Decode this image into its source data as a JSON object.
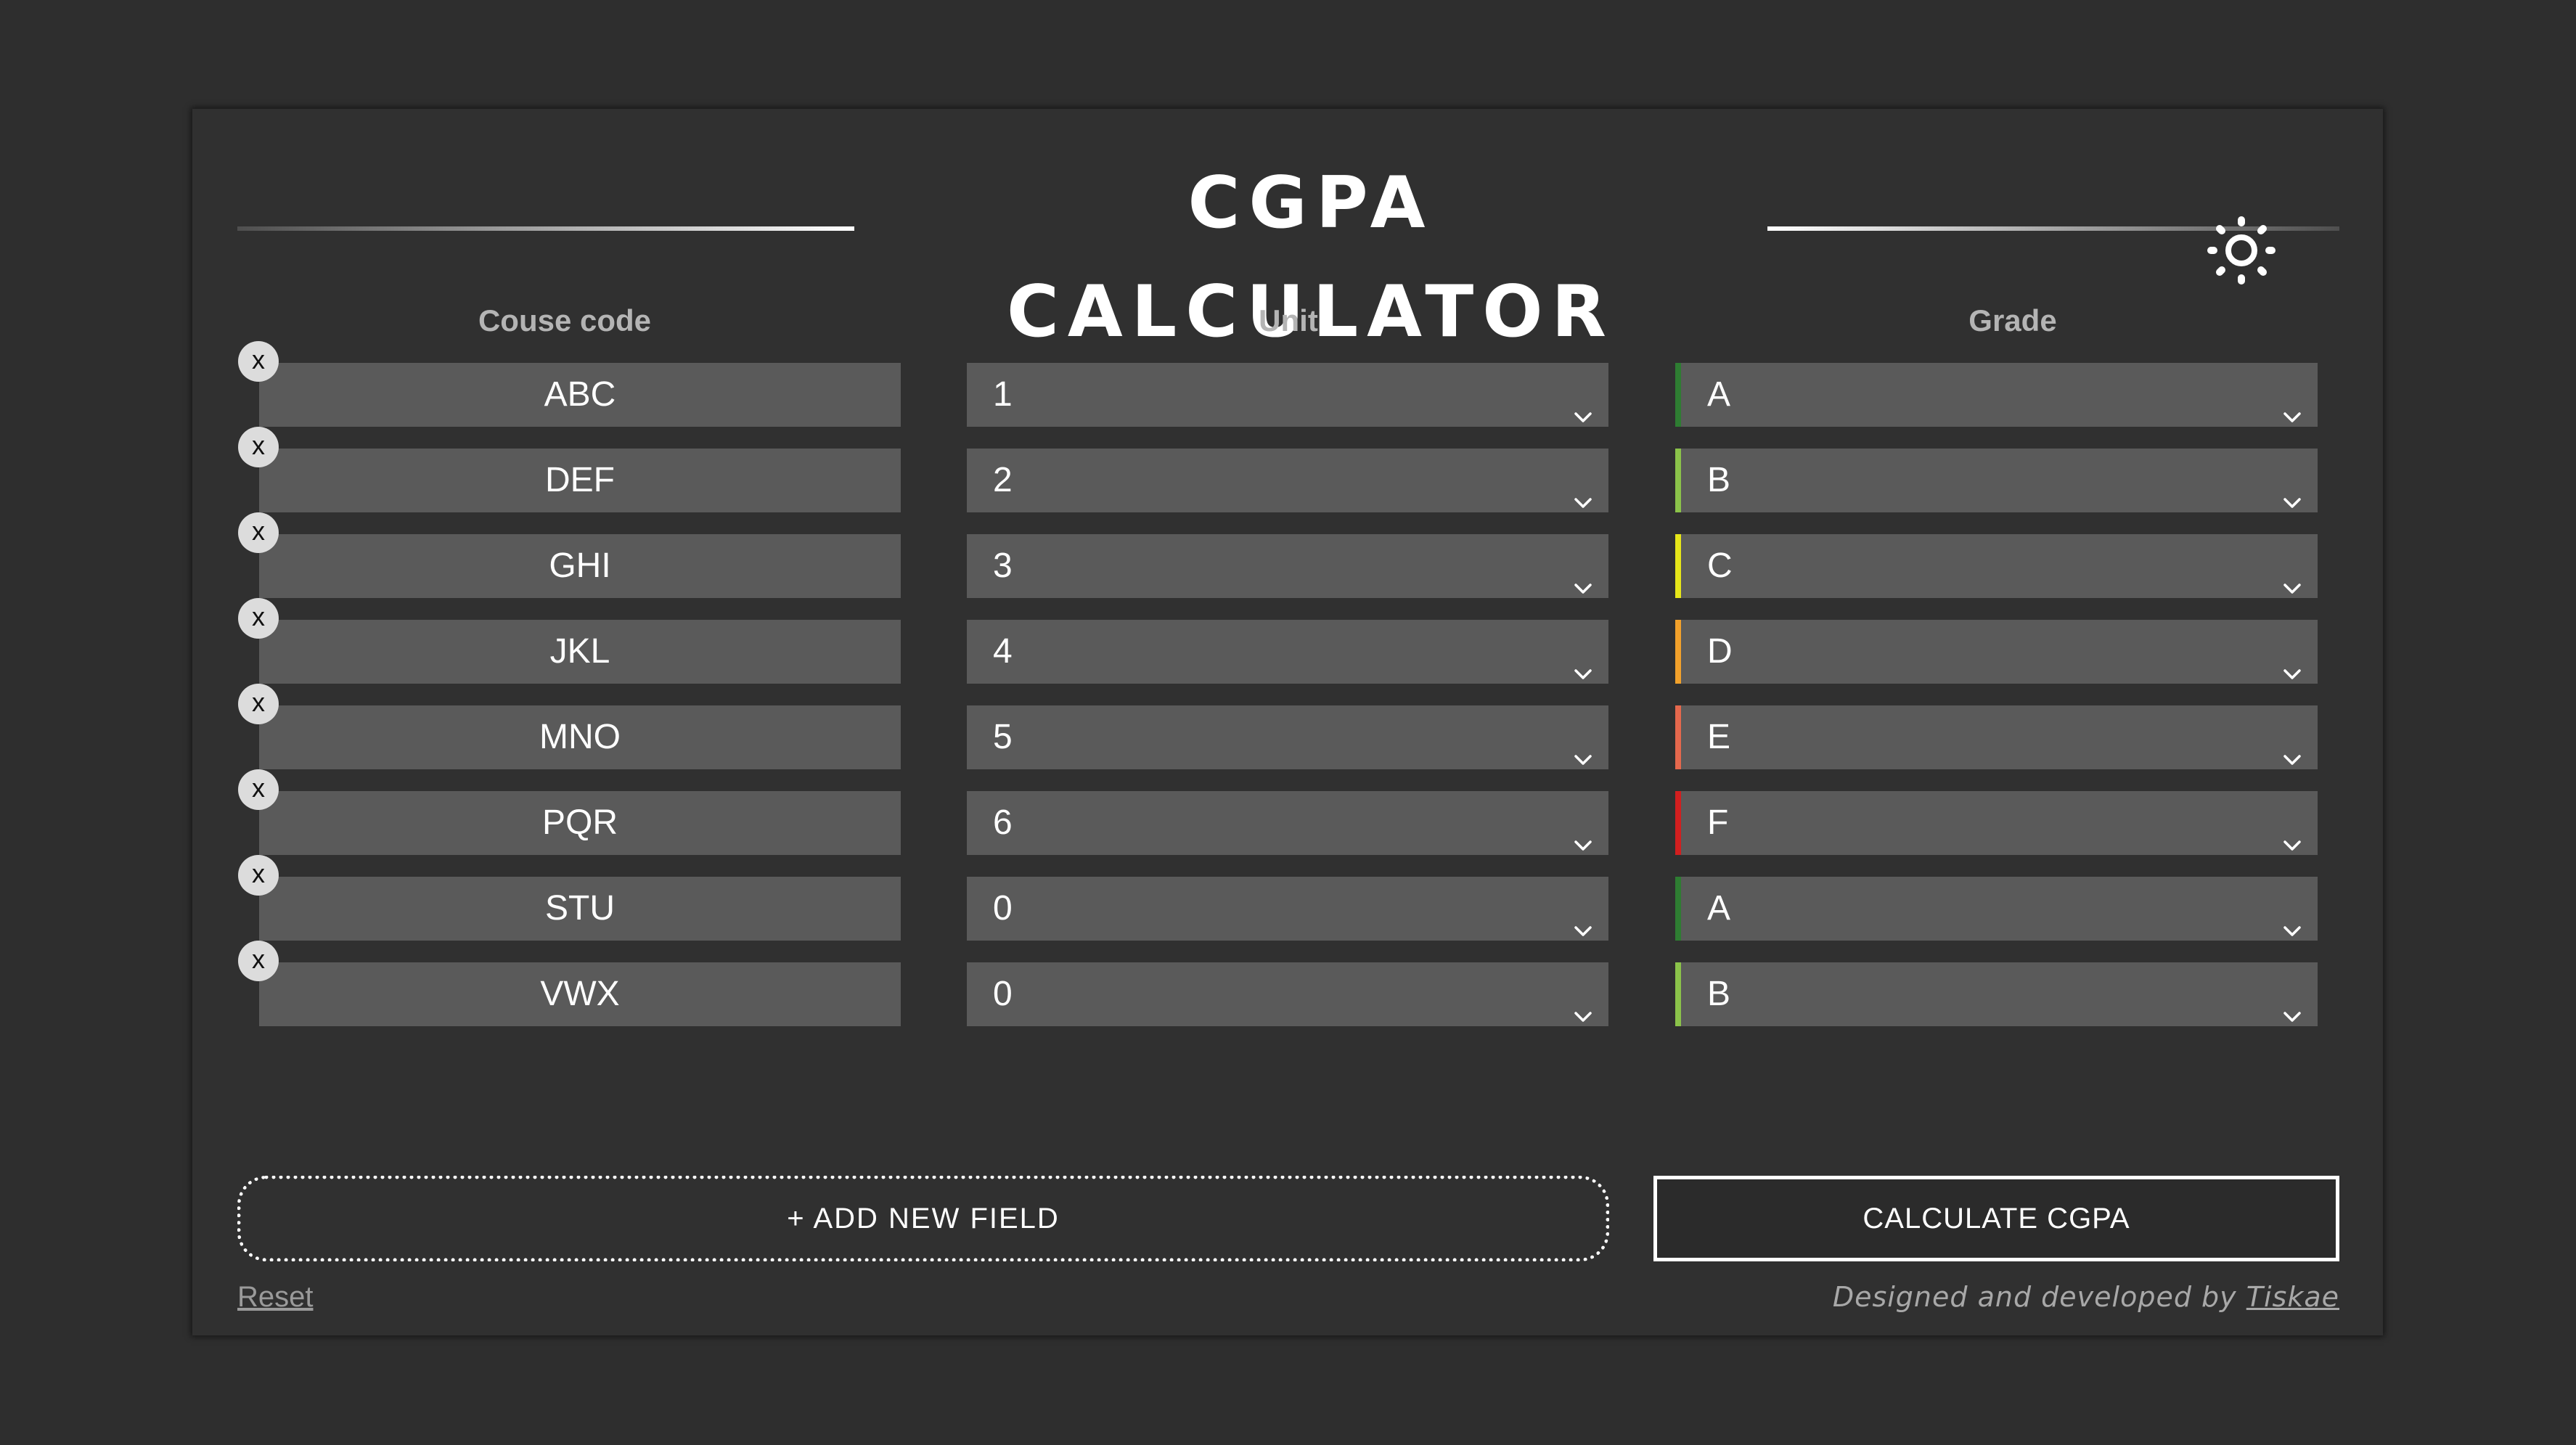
{
  "app": {
    "title": "CGPA CALCULATOR",
    "theme_toggle_icon": "sun-icon"
  },
  "columns": {
    "course_code": "Couse code",
    "unit": "Unit",
    "grade": "Grade"
  },
  "rows": [
    {
      "remove_label": "x",
      "code": "ABC",
      "unit": "1",
      "grade": "A",
      "grade_color": "#2e7d32"
    },
    {
      "remove_label": "x",
      "code": "DEF",
      "unit": "2",
      "grade": "B",
      "grade_color": "#8bc34a"
    },
    {
      "remove_label": "x",
      "code": "GHI",
      "unit": "3",
      "grade": "C",
      "grade_color": "#e6e619"
    },
    {
      "remove_label": "x",
      "code": "JKL",
      "unit": "4",
      "grade": "D",
      "grade_color": "#f2a12b"
    },
    {
      "remove_label": "x",
      "code": "MNO",
      "unit": "5",
      "grade": "E",
      "grade_color": "#e5684d"
    },
    {
      "remove_label": "x",
      "code": "PQR",
      "unit": "6",
      "grade": "F",
      "grade_color": "#d21f1f"
    },
    {
      "remove_label": "x",
      "code": "STU",
      "unit": "0",
      "grade": "A",
      "grade_color": "#2e7d32"
    },
    {
      "remove_label": "x",
      "code": "VWX",
      "unit": "0",
      "grade": "B",
      "grade_color": "#8bc34a"
    }
  ],
  "actions": {
    "add_field": "+ ADD NEW FIELD",
    "calculate": "CALCULATE CGPA",
    "reset": "Reset"
  },
  "footer": {
    "credit_prefix": "Designed and developed by",
    "credit_name": "Tiskae"
  },
  "colors": {
    "background": "#2e2e2e",
    "card": "#303030",
    "field": "#5a5a5a",
    "header_text": "#b4b4b4"
  }
}
